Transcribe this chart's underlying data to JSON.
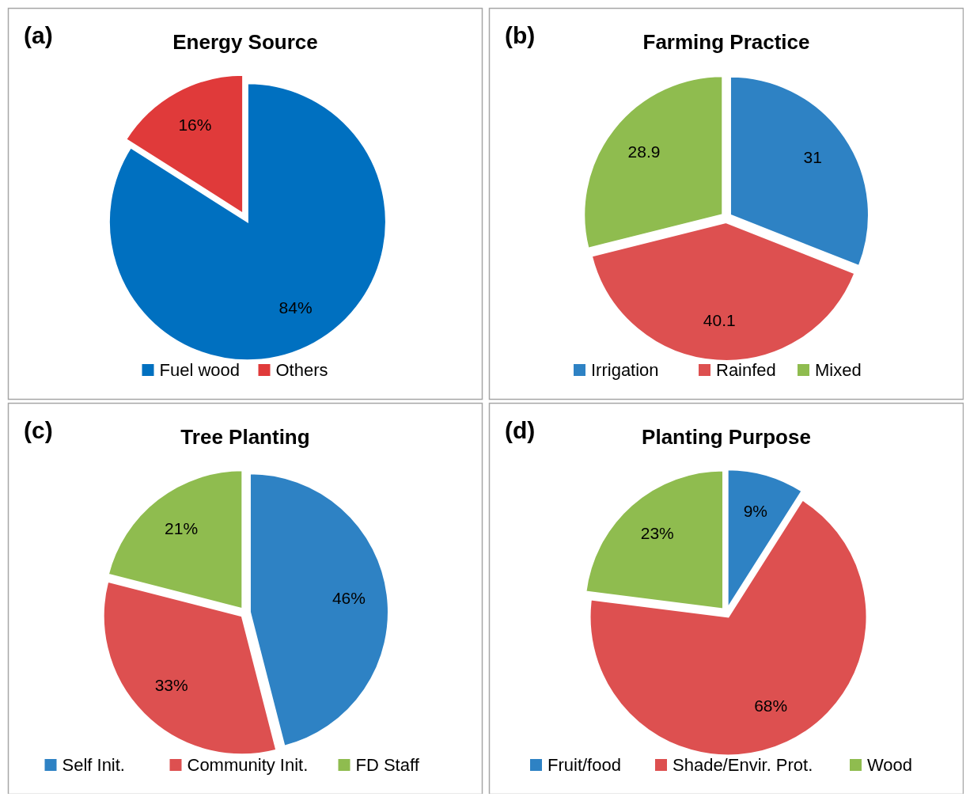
{
  "chart_data": [
    {
      "type": "pie",
      "title": "Energy Source",
      "annotations": [
        "(a)"
      ],
      "categories": [
        "Fuel wood",
        "Others"
      ],
      "values": [
        84,
        16
      ],
      "colors": [
        "#0070c0",
        "#e03a3a"
      ],
      "value_labels": [
        "84%",
        "16%"
      ],
      "legend": "bottom"
    },
    {
      "type": "pie",
      "title": "Farming Practice",
      "annotations": [
        "(b)"
      ],
      "categories": [
        "Irrigation",
        "Rainfed",
        "Mixed"
      ],
      "values": [
        31,
        40.1,
        28.9
      ],
      "colors": [
        "#2e82c4",
        "#dd5050",
        "#8fbc4f"
      ],
      "data_labels": true,
      "legend": "bottom"
    },
    {
      "type": "pie",
      "title": "Tree Planting",
      "annotations": [
        "(c)"
      ],
      "categories": [
        "Self Init.",
        "Community Init.",
        "FD Staff"
      ],
      "values": [
        46,
        33,
        21
      ],
      "colors": [
        "#2e82c4",
        "#dd5050",
        "#8fbc4f"
      ],
      "value_labels": [
        "46%",
        "33%",
        "21%"
      ],
      "legend": "bottom"
    },
    {
      "type": "pie",
      "title": "Planting Purpose",
      "annotations": [
        "(d)"
      ],
      "categories": [
        "Fruit/food",
        "Shade/Envir. Prot.",
        "Wood"
      ],
      "values": [
        9,
        68,
        23
      ],
      "colors": [
        "#2e82c4",
        "#dd5050",
        "#8fbc4f"
      ],
      "value_labels": [
        "9%",
        "68%",
        "23%"
      ],
      "legend": "bottom"
    }
  ]
}
